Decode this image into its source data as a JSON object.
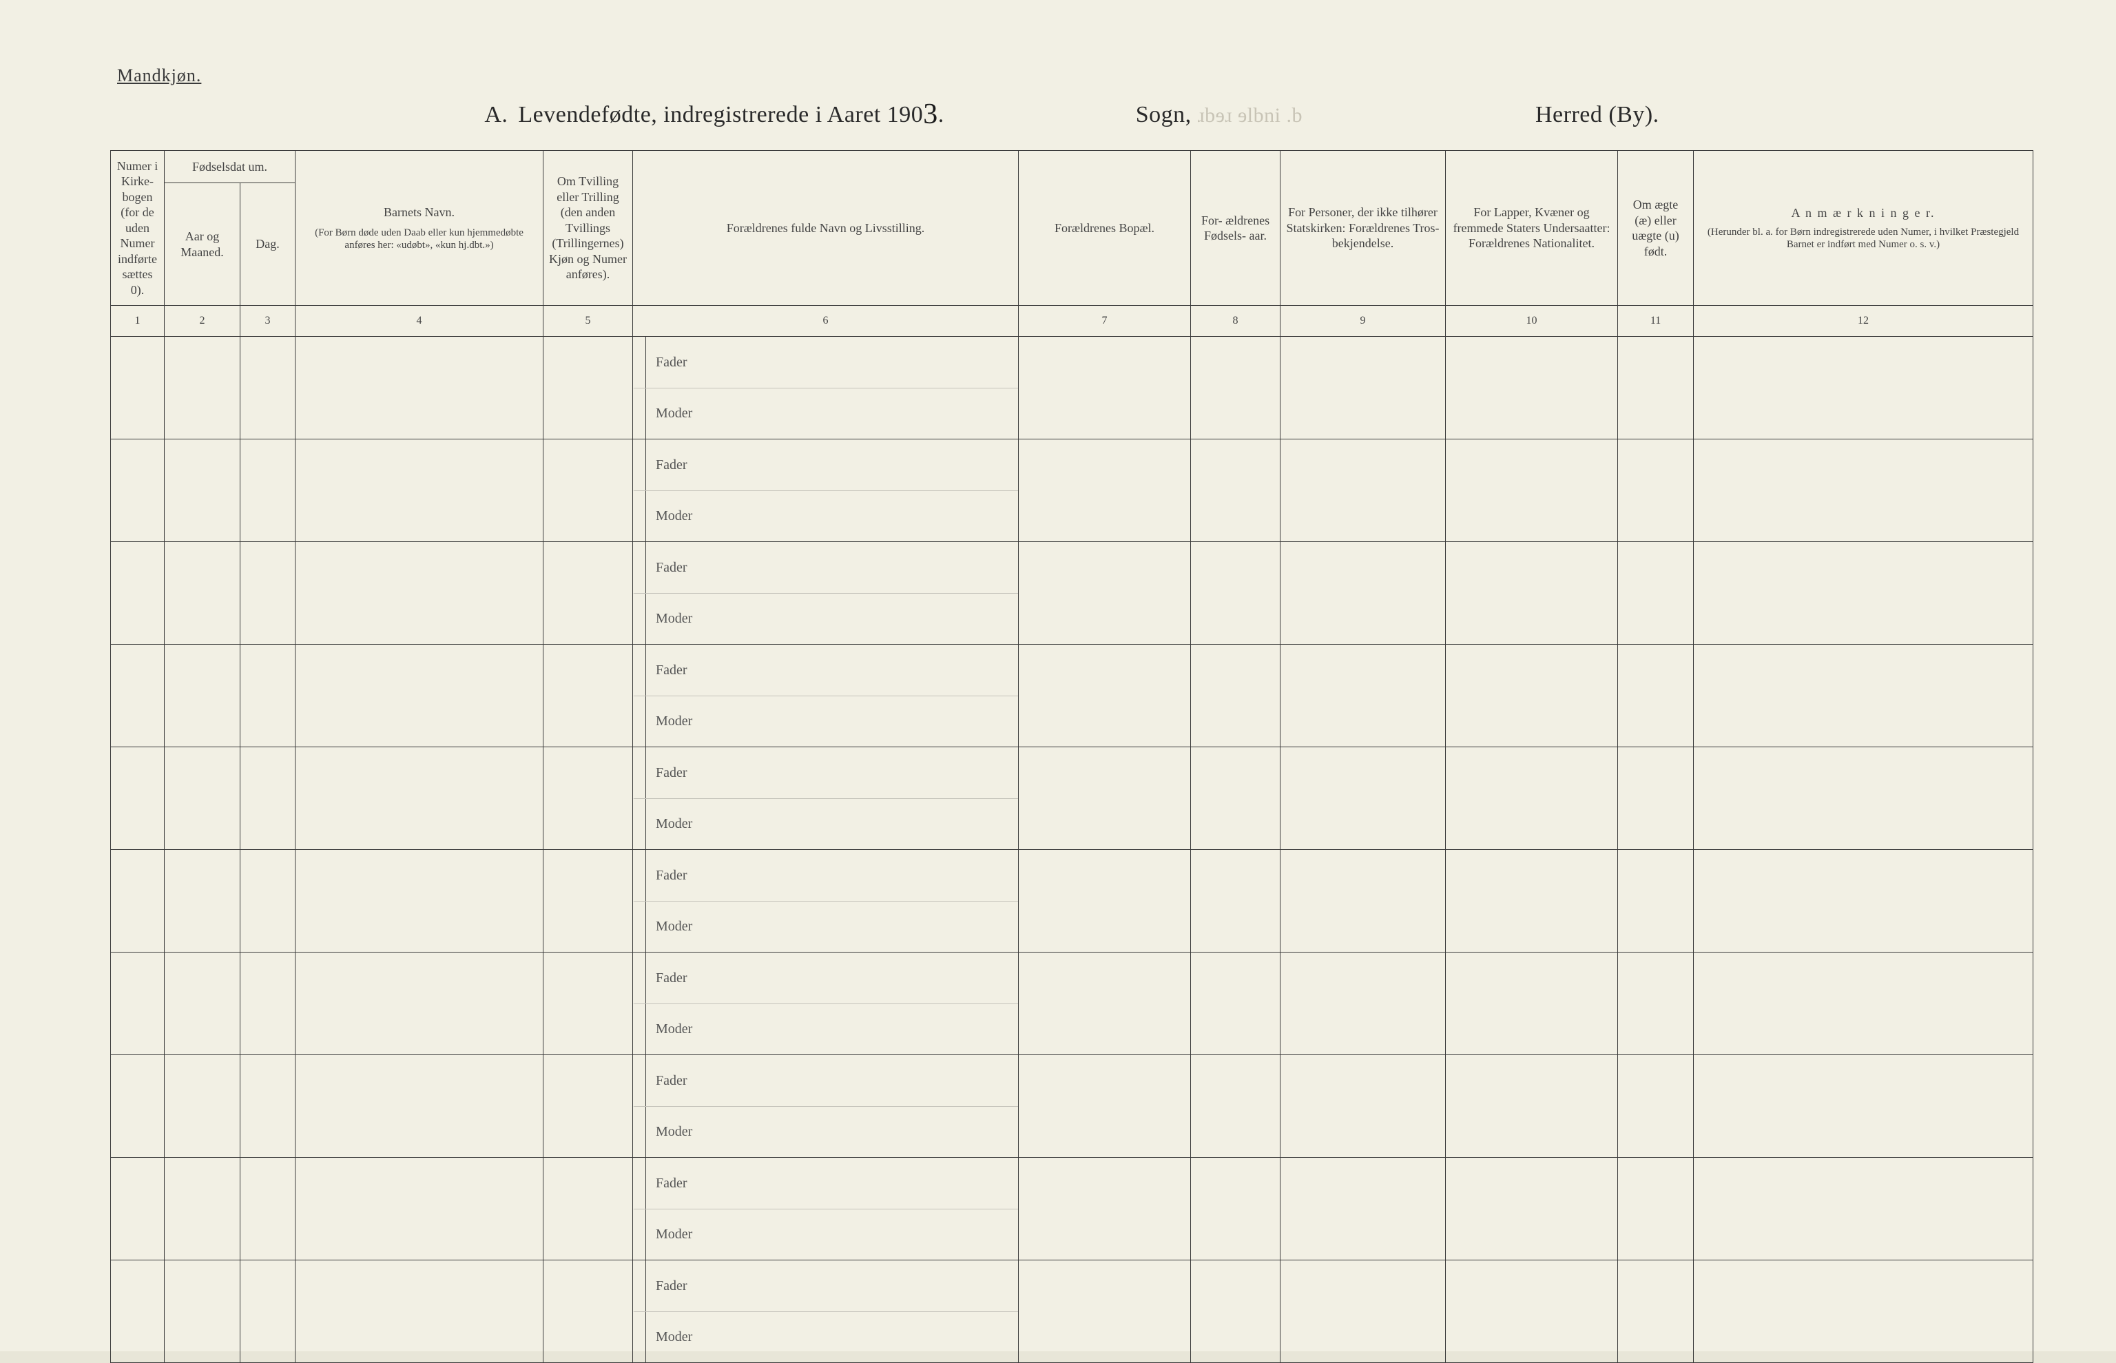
{
  "doc": {
    "gender_label": "Mandkjøn.",
    "title_prefix": "A.",
    "title_main": "Levendefødte, indregistrerede i Aaret 190",
    "title_year_hand": "3",
    "title_dot": ".",
    "title_sogn": "Sogn,",
    "title_herred": "Herred (By).",
    "faint_marks": "ɹbɘɹ  ɘlbni  .b"
  },
  "columns": {
    "c1_header": "Numer i Kirke- bogen (for de uden Numer indførte sættes 0).",
    "c2_group": "Fødselsdat um.",
    "c2_header": "Aar og Maaned.",
    "c3_header": "Dag.",
    "c4_header_title": "Barnets Navn.",
    "c4_header_sub": "(For Børn døde uden Daab eller kun hjemmedøbte anføres her: «udøbt», «kun hj.dbt.»)",
    "c5_header": "Om Tvilling eller Trilling (den anden Tvillings (Trillingernes) Kjøn og Numer anføres).",
    "c6_header": "Forældrenes fulde Navn og Livsstilling.",
    "c7_header": "Forældrenes Bopæl.",
    "c8_header": "For- ældrenes Fødsels- aar.",
    "c9_header": "For Personer, der ikke tilhører Statskirken: Forældrenes Tros- bekjendelse.",
    "c10_header": "For Lapper, Kvæner og fremmede Staters Undersaatter: Forældrenes Nationalitet.",
    "c11_header": "Om ægte (æ) eller uægte (u) født.",
    "c12_header_title": "A n m æ r k n i n g e r.",
    "c12_header_sub": "(Herunder bl. a. for Børn indregistrerede uden Numer, i hvilket Præstegjeld Barnet er indført med Numer o. s. v.)"
  },
  "colnums": {
    "n1": "1",
    "n2": "2",
    "n3": "3",
    "n4": "4",
    "n5": "5",
    "n6": "6",
    "n7": "7",
    "n8": "8",
    "n9": "9",
    "n10": "10",
    "n11": "11",
    "n12": "12"
  },
  "row_labels": {
    "fader": "Fader",
    "moder": "Moder"
  },
  "layout": {
    "num_rows": 10
  }
}
